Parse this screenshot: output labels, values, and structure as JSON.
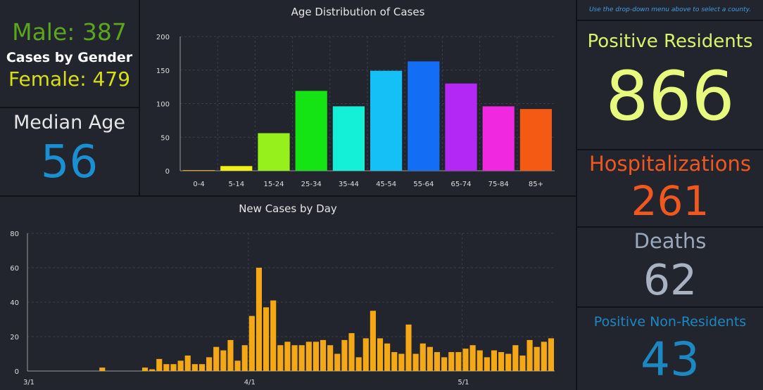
{
  "gender": {
    "male_text": "Male: 387",
    "title": "Cases by Gender",
    "female_text": "Female: 479",
    "male_color": "#5aa61c",
    "female_color": "#d8df13"
  },
  "median_age": {
    "label": "Median Age",
    "value": "56",
    "value_color": "#1a8fd1"
  },
  "hint": "Use the drop-down menu above to select a county.",
  "stats": {
    "positive_residents": {
      "label": "Positive Residents",
      "value": "866",
      "label_color": "#d9f36b",
      "value_color": "#e7fa7d"
    },
    "hospitalizations": {
      "label": "Hospitalizations",
      "value": "261",
      "color": "#f0581f"
    },
    "deaths": {
      "label": "Deaths",
      "value": "62",
      "label_color": "#9aa8bd",
      "value_color": "#a8b2c2"
    },
    "positive_non_residents": {
      "label": "Positive Non-Residents",
      "value": "43",
      "color": "#1b88c4"
    }
  },
  "chart_data": [
    {
      "type": "bar",
      "title": "Age Distribution of Cases",
      "categories": [
        "0-4",
        "5-14",
        "15-24",
        "25-34",
        "35-44",
        "45-54",
        "55-64",
        "65-74",
        "75-84",
        "85+"
      ],
      "values": [
        1,
        7,
        56,
        119,
        96,
        149,
        163,
        130,
        96,
        92
      ],
      "colors": [
        "#e8a824",
        "#f0f014",
        "#96f01c",
        "#14e314",
        "#14f0d8",
        "#14c0f5",
        "#146ef5",
        "#b428f5",
        "#f028e0",
        "#f55a14"
      ],
      "ylim": [
        0,
        200
      ],
      "yticks": [
        0,
        50,
        100,
        150,
        200
      ],
      "grid": true
    },
    {
      "type": "bar",
      "title": "New Cases by Day",
      "x_tick_labels": [
        "3/1",
        "4/1",
        "5/1"
      ],
      "x_tick_index": [
        0,
        31,
        61
      ],
      "color": "#f5a816",
      "values": [
        0,
        0,
        0,
        0,
        0,
        0,
        0,
        0,
        0,
        0,
        2,
        0,
        0,
        0,
        0,
        0,
        2,
        1,
        7,
        4,
        4,
        6,
        9,
        4,
        4,
        8,
        14,
        12,
        18,
        6,
        15,
        32,
        60,
        37,
        41,
        15,
        17,
        15,
        15,
        17,
        17,
        18,
        15,
        10,
        18,
        22,
        8,
        19,
        35,
        19,
        16,
        11,
        10,
        27,
        10,
        16,
        14,
        11,
        8,
        11,
        11,
        13,
        15,
        12,
        8,
        12,
        11,
        10,
        15,
        9,
        18,
        14,
        17,
        19
      ],
      "ylim": [
        0,
        80
      ],
      "yticks": [
        0,
        20,
        40,
        60,
        80
      ],
      "grid": true
    }
  ]
}
